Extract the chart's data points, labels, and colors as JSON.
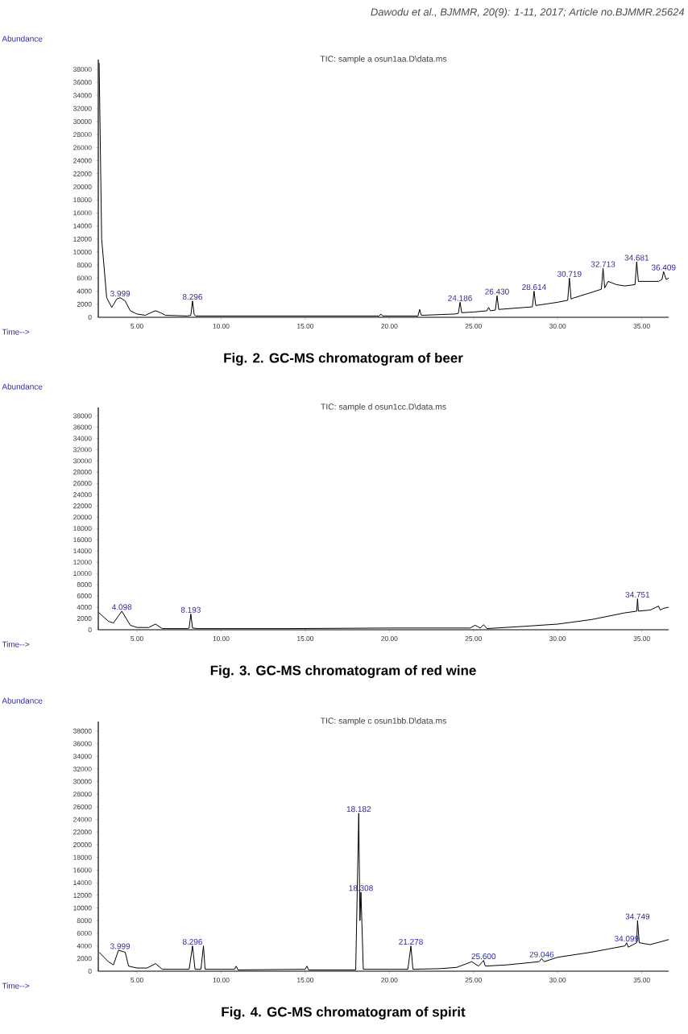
{
  "chart_data": [
    {
      "type": "line",
      "title": "TIC: sample a osun1aa.D\\data.ms",
      "xlabel": "Time-->",
      "ylabel": "Abundance",
      "xlim": [
        2.7,
        36.6
      ],
      "ylim": [
        0,
        39500
      ],
      "xticks": [
        {
          "value": 5,
          "label": "5.00"
        },
        {
          "value": 10,
          "label": "10.00"
        },
        {
          "value": 15,
          "label": "15.00"
        },
        {
          "value": 20,
          "label": "20.00"
        },
        {
          "value": 25,
          "label": "25.00"
        },
        {
          "value": 30,
          "label": "30.00"
        },
        {
          "value": 35,
          "label": "35.00"
        }
      ],
      "yticks": [
        0,
        2000,
        4000,
        6000,
        8000,
        10000,
        12000,
        14000,
        16000,
        18000,
        20000,
        22000,
        24000,
        26000,
        28000,
        30000,
        32000,
        34000,
        36000,
        38000
      ],
      "series": [
        {
          "color": "#000000",
          "x": [
            2.75,
            2.9,
            3.2,
            3.5,
            3.8,
            4.0,
            4.3,
            4.6,
            5.0,
            5.5,
            5.9,
            6.1,
            6.4,
            6.7,
            8.0,
            8.2,
            8.3,
            8.4,
            8.5,
            12.0,
            16.0,
            19.4,
            19.5,
            19.6,
            21.7,
            21.8,
            21.9,
            23.9,
            24.1,
            24.2,
            24.3,
            25.0,
            25.8,
            25.9,
            26.0,
            26.3,
            26.4,
            26.5,
            28.0,
            28.5,
            28.6,
            28.7,
            30.0,
            30.6,
            30.7,
            30.8,
            31.0,
            32.0,
            32.6,
            32.7,
            32.8,
            33.0,
            33.5,
            34.0,
            34.6,
            34.7,
            34.8,
            35.5,
            36.0,
            36.2,
            36.3,
            36.45,
            36.6
          ],
          "values": [
            39000,
            12000,
            3000,
            1500,
            2800,
            3000,
            2500,
            1000,
            500,
            300,
            800,
            1000,
            700,
            300,
            200,
            300,
            2500,
            400,
            200,
            200,
            200,
            200,
            500,
            200,
            200,
            1200,
            300,
            500,
            600,
            2300,
            700,
            800,
            1000,
            1500,
            1000,
            1100,
            3300,
            1200,
            1500,
            1600,
            4000,
            1800,
            2300,
            2600,
            6000,
            2800,
            3000,
            3800,
            4300,
            7500,
            4500,
            5500,
            5000,
            4800,
            5000,
            8500,
            5500,
            5500,
            5500,
            5800,
            7000,
            5800,
            6000
          ]
        }
      ],
      "annotations": [
        "Dawodu et al., BJMMR, 20(9): 1-11, 2017; Article no.BJMMR.25624",
        {
          "text": "3.999",
          "x": 4.0,
          "y": 3000
        },
        {
          "text": "8.296",
          "x": 8.3,
          "y": 2500
        },
        {
          "text": "24.186",
          "x": 24.2,
          "y": 2300
        },
        {
          "text": "26.430",
          "x": 26.4,
          "y": 3300
        },
        {
          "text": "28.614",
          "x": 28.6,
          "y": 4000
        },
        {
          "text": "30.719",
          "x": 30.7,
          "y": 6000
        },
        {
          "text": "32.713",
          "x": 32.7,
          "y": 7500
        },
        {
          "text": "34.681",
          "x": 34.7,
          "y": 8500
        },
        {
          "text": "36.409",
          "x": 36.3,
          "y": 7000
        },
        "Fig. 2. GC-MS chromatogram of beer"
      ]
    },
    {
      "type": "line",
      "title": "TIC: sample d osun1cc.D\\data.ms",
      "xlabel": "Time-->",
      "ylabel": "Abundance",
      "xlim": [
        2.7,
        36.6
      ],
      "ylim": [
        0,
        39500
      ],
      "xticks": [
        {
          "value": 5,
          "label": "5.00"
        },
        {
          "value": 10,
          "label": "10.00"
        },
        {
          "value": 15,
          "label": "15.00"
        },
        {
          "value": 20,
          "label": "20.00"
        },
        {
          "value": 25,
          "label": "25.00"
        },
        {
          "value": 30,
          "label": "30.00"
        },
        {
          "value": 35,
          "label": "35.00"
        }
      ],
      "yticks": [
        0,
        2000,
        4000,
        6000,
        8000,
        10000,
        12000,
        14000,
        16000,
        18000,
        20000,
        22000,
        24000,
        26000,
        28000,
        30000,
        32000,
        34000,
        36000,
        38000
      ],
      "series": [
        {
          "color": "#000000",
          "x": [
            2.75,
            3.3,
            3.6,
            4.1,
            4.6,
            5.0,
            5.7,
            6.1,
            6.5,
            8.0,
            8.1,
            8.2,
            8.3,
            8.6,
            14.0,
            20.0,
            24.8,
            25.1,
            25.4,
            25.6,
            25.8,
            28.0,
            30.0,
            32.0,
            34.0,
            34.7,
            34.75,
            34.8,
            35.5,
            36.0,
            36.1,
            36.3,
            36.6
          ],
          "values": [
            3000,
            1500,
            1200,
            3300,
            800,
            400,
            400,
            1000,
            200,
            200,
            300,
            2800,
            300,
            200,
            200,
            300,
            300,
            800,
            300,
            900,
            200,
            600,
            1000,
            1800,
            3000,
            3300,
            5500,
            3300,
            3500,
            4200,
            3500,
            3800,
            4000
          ]
        }
      ],
      "annotations": [
        {
          "text": "4.098",
          "x": 4.1,
          "y": 3300
        },
        {
          "text": "8.193",
          "x": 8.2,
          "y": 2800
        },
        {
          "text": "34.751",
          "x": 34.75,
          "y": 5500
        },
        "Fig. 3. GC-MS chromatogram of red wine"
      ]
    },
    {
      "type": "line",
      "title": "TIC: sample c osun1bb.D\\data.ms",
      "xlabel": "Time-->",
      "ylabel": "Abundance",
      "xlim": [
        2.7,
        36.6
      ],
      "ylim": [
        0,
        39500
      ],
      "xticks": [
        {
          "value": 5,
          "label": "5.00"
        },
        {
          "value": 10,
          "label": "10.00"
        },
        {
          "value": 15,
          "label": "15.00"
        },
        {
          "value": 20,
          "label": "20.00"
        },
        {
          "value": 25,
          "label": "25.00"
        },
        {
          "value": 30,
          "label": "30.00"
        },
        {
          "value": 35,
          "label": "35.00"
        }
      ],
      "yticks": [
        0,
        2000,
        4000,
        6000,
        8000,
        10000,
        12000,
        14000,
        16000,
        18000,
        20000,
        22000,
        24000,
        26000,
        28000,
        30000,
        32000,
        34000,
        36000,
        38000
      ],
      "series": [
        {
          "color": "#000000",
          "x": [
            2.75,
            3.3,
            3.6,
            3.9,
            4.3,
            4.5,
            5.0,
            5.6,
            6.1,
            6.5,
            8.1,
            8.3,
            8.45,
            8.8,
            8.95,
            9.05,
            10.8,
            10.9,
            11.0,
            15.0,
            15.1,
            15.2,
            18.0,
            18.18,
            18.25,
            18.31,
            18.45,
            21.1,
            21.28,
            21.4,
            23.0,
            24.0,
            24.9,
            25.3,
            25.6,
            25.7,
            27.0,
            28.9,
            29.05,
            29.2,
            30.0,
            32.0,
            33.0,
            34.0,
            34.1,
            34.2,
            34.7,
            34.75,
            34.85,
            35.5,
            36.6
          ],
          "values": [
            3000,
            1500,
            1000,
            3300,
            3000,
            800,
            500,
            500,
            1200,
            300,
            300,
            4000,
            300,
            300,
            4000,
            300,
            300,
            800,
            200,
            300,
            800,
            200,
            200,
            25000,
            8000,
            12500,
            300,
            300,
            4000,
            300,
            400,
            600,
            1500,
            800,
            1700,
            800,
            1000,
            1500,
            2000,
            1500,
            2200,
            3000,
            3500,
            4000,
            4500,
            3800,
            4500,
            8000,
            4500,
            4200,
            5000
          ]
        }
      ],
      "annotations": [
        {
          "text": "3.999",
          "x": 4.0,
          "y": 3300
        },
        {
          "text": "8.296",
          "x": 8.3,
          "y": 4000
        },
        {
          "text": "18.182",
          "x": 18.18,
          "y": 25000
        },
        {
          "text": "18.308",
          "x": 18.31,
          "y": 12500
        },
        {
          "text": "21.278",
          "x": 21.28,
          "y": 4000
        },
        {
          "text": "25.600",
          "x": 25.6,
          "y": 1700
        },
        {
          "text": "29.046",
          "x": 29.05,
          "y": 2000
        },
        {
          "text": "34.099",
          "x": 34.1,
          "y": 4500
        },
        {
          "text": "34.749",
          "x": 34.75,
          "y": 8000
        },
        "Fig. 4. GC-MS chromatogram of spirit"
      ]
    }
  ]
}
